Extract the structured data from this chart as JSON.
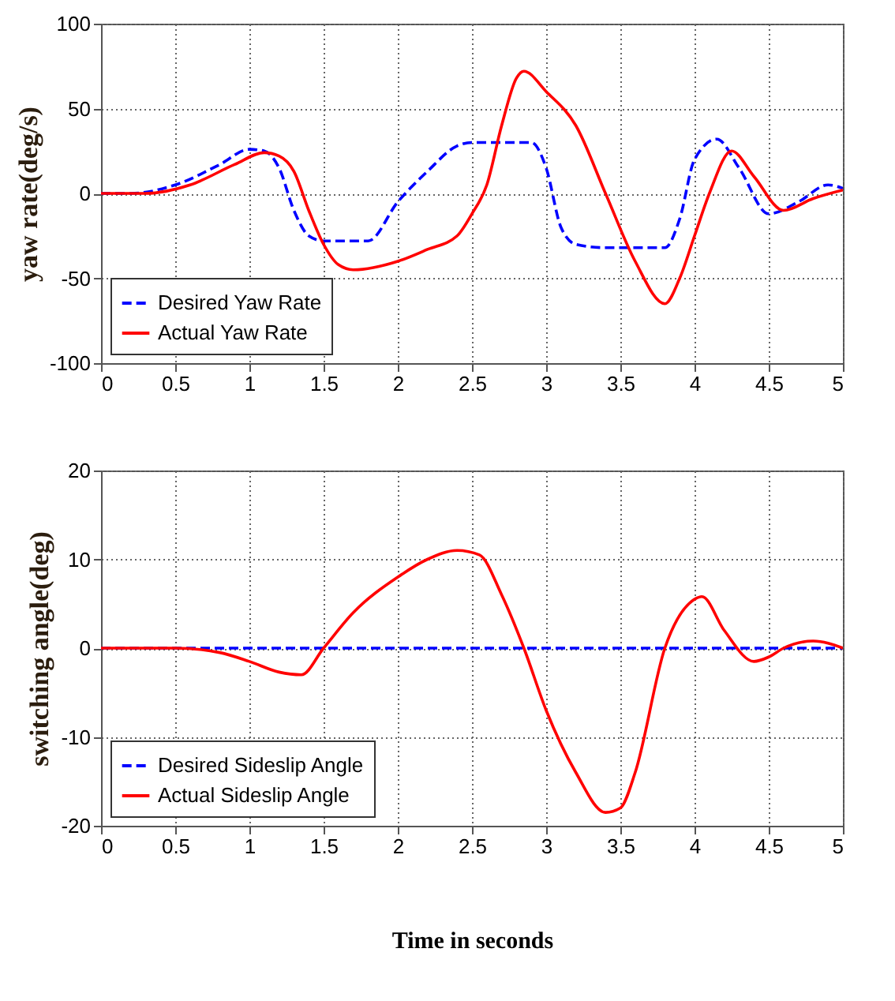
{
  "chart_data": [
    {
      "type": "line",
      "ylabel": "yaw rate(deg/s)",
      "xlim": [
        0,
        5
      ],
      "xticks": [
        0,
        0.5,
        1,
        1.5,
        2,
        2.5,
        3,
        3.5,
        4,
        4.5,
        5
      ],
      "ylim": [
        -100,
        100
      ],
      "yticks": [
        -100,
        -50,
        0,
        50,
        100
      ],
      "grid": true,
      "legend": "bottom left",
      "series": [
        {
          "name": "Desired Yaw Rate",
          "color": "#0000ff",
          "line_style": "dashed",
          "x": [
            0,
            0.2,
            0.5,
            0.8,
            1.0,
            1.1,
            1.2,
            1.3,
            1.4,
            1.5,
            1.8,
            2.0,
            2.2,
            2.4,
            2.5,
            2.9,
            3.0,
            3.1,
            3.2,
            3.4,
            3.8,
            3.9,
            4.0,
            4.15,
            4.3,
            4.5,
            4.7,
            4.9,
            5
          ],
          "values": [
            0,
            0,
            5,
            17,
            26,
            25,
            15,
            -10,
            -25,
            -28,
            -28,
            -5,
            13,
            28,
            30,
            30,
            15,
            -20,
            -30,
            -32,
            -32,
            -15,
            20,
            32,
            15,
            -12,
            -5,
            5,
            3
          ]
        },
        {
          "name": "Actual Yaw Rate",
          "color": "#ff0000",
          "line_style": "solid",
          "x": [
            0,
            0.3,
            0.6,
            0.9,
            1.1,
            1.2,
            1.3,
            1.4,
            1.5,
            1.6,
            1.7,
            2.0,
            2.2,
            2.4,
            2.5,
            2.6,
            2.7,
            2.8,
            2.85,
            3.0,
            3.2,
            3.4,
            3.6,
            3.8,
            3.9,
            4.0,
            4.1,
            4.25,
            4.4,
            4.6,
            4.8,
            5
          ],
          "values": [
            0,
            0,
            5,
            17,
            24,
            22,
            13,
            -10,
            -30,
            -42,
            -45,
            -40,
            -33,
            -25,
            -12,
            5,
            40,
            68,
            72,
            60,
            40,
            0,
            -40,
            -65,
            -50,
            -25,
            0,
            25,
            10,
            -10,
            -3,
            2
          ]
        }
      ]
    },
    {
      "type": "line",
      "ylabel": "switching angle(deg)",
      "xlabel": "Time in seconds",
      "xlim": [
        0,
        5
      ],
      "xticks": [
        0,
        0.5,
        1,
        1.5,
        2,
        2.5,
        3,
        3.5,
        4,
        4.5,
        5
      ],
      "ylim": [
        -20,
        20
      ],
      "yticks": [
        -20,
        -10,
        0,
        10,
        20
      ],
      "grid": true,
      "legend": "bottom left",
      "series": [
        {
          "name": "Desired Sideslip Angle",
          "color": "#0000ff",
          "line_style": "dashed",
          "x": [
            0,
            5
          ],
          "values": [
            0,
            0
          ]
        },
        {
          "name": "Actual Sideslip Angle",
          "color": "#ff0000",
          "line_style": "solid",
          "x": [
            0,
            0.5,
            0.8,
            1.0,
            1.2,
            1.35,
            1.5,
            1.7,
            2.0,
            2.2,
            2.4,
            2.55,
            2.7,
            2.85,
            3.0,
            3.2,
            3.4,
            3.5,
            3.6,
            3.8,
            4.0,
            4.05,
            4.2,
            4.4,
            4.5,
            4.6,
            4.8,
            5
          ],
          "values": [
            0,
            0,
            -0.5,
            -1.5,
            -2.7,
            -3,
            0,
            4,
            8,
            10,
            11,
            10.5,
            6,
            0,
            -7,
            -14,
            -18.5,
            -18,
            -14,
            0,
            5.5,
            5.8,
            2,
            -1.5,
            -1,
            0,
            0.8,
            0
          ]
        }
      ]
    }
  ]
}
